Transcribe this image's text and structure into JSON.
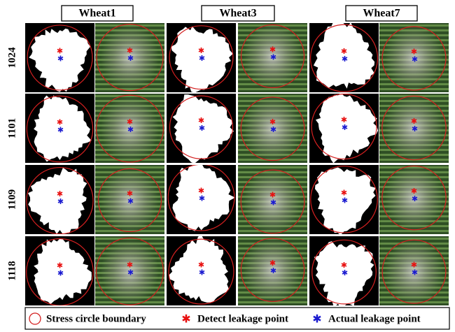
{
  "columns": [
    "Wheat1",
    "Wheat3",
    "Wheat7"
  ],
  "rows": [
    "1024",
    "1101",
    "1109",
    "1118"
  ],
  "legend": [
    {
      "label": "Stress circle boundary"
    },
    {
      "label": "Detect leakage point"
    },
    {
      "label": "Actual leakage point"
    }
  ]
}
